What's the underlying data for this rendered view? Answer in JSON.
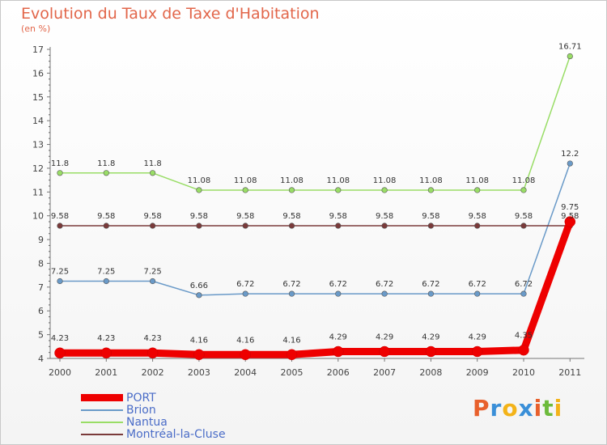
{
  "header": {
    "title": "Evolution du Taux de Taxe d'Habitation",
    "subtitle": "(en %)"
  },
  "logo": {
    "letters": [
      "P",
      "r",
      "o",
      "x",
      "i",
      "t",
      "i"
    ],
    "colors": [
      "#e8602c",
      "#3a8fd8",
      "#f3b319",
      "#3a8fd8",
      "#e8602c",
      "#6dbb3c",
      "#f3b319"
    ]
  },
  "chart_data": {
    "type": "line",
    "x": [
      "2000",
      "2001",
      "2002",
      "2003",
      "2004",
      "2005",
      "2006",
      "2007",
      "2008",
      "2009",
      "2010",
      "2011"
    ],
    "ylim": [
      4,
      17
    ],
    "yticks": [
      4,
      5,
      6,
      7,
      8,
      9,
      10,
      11,
      12,
      13,
      14,
      15,
      16,
      17
    ],
    "grid": false,
    "legend_position": "bottom-left",
    "series": [
      {
        "name": "PORT",
        "color": "#ee0000",
        "width": 9,
        "values": [
          4.23,
          4.23,
          4.23,
          4.16,
          4.16,
          4.16,
          4.29,
          4.29,
          4.29,
          4.29,
          4.35,
          9.75
        ],
        "labels": [
          "4.23",
          "4.23",
          "4.23",
          "4.16",
          "4.16",
          "4.16",
          "4.29",
          "4.29",
          "4.29",
          "4.29",
          "4.35",
          "9.75"
        ]
      },
      {
        "name": "Brion",
        "color": "#6a9ac8",
        "width": 1.5,
        "values": [
          7.25,
          7.25,
          7.25,
          6.66,
          6.72,
          6.72,
          6.72,
          6.72,
          6.72,
          6.72,
          6.72,
          12.2
        ],
        "labels": [
          "7.25",
          "7.25",
          "7.25",
          "6.66",
          "6.72",
          "6.72",
          "6.72",
          "6.72",
          "6.72",
          "6.72",
          "6.72",
          "12.2"
        ]
      },
      {
        "name": "Nantua",
        "color": "#99dd66",
        "width": 1.5,
        "values": [
          11.8,
          11.8,
          11.8,
          11.08,
          11.08,
          11.08,
          11.08,
          11.08,
          11.08,
          11.08,
          11.08,
          16.71
        ],
        "labels": [
          "11.8",
          "11.8",
          "11.8",
          "11.08",
          "11.08",
          "11.08",
          "11.08",
          "11.08",
          "11.08",
          "11.08",
          "11.08",
          "16.71"
        ]
      },
      {
        "name": "Montréal-la-Cluse",
        "color": "#7a3a3a",
        "width": 1.5,
        "values": [
          9.58,
          9.58,
          9.58,
          9.58,
          9.58,
          9.58,
          9.58,
          9.58,
          9.58,
          9.58,
          9.58,
          9.58
        ],
        "labels": [
          "9.58",
          "9.58",
          "9.58",
          "9.58",
          "9.58",
          "9.58",
          "9.58",
          "9.58",
          "9.58",
          "9.58",
          "9.58",
          "9.58"
        ]
      }
    ]
  }
}
